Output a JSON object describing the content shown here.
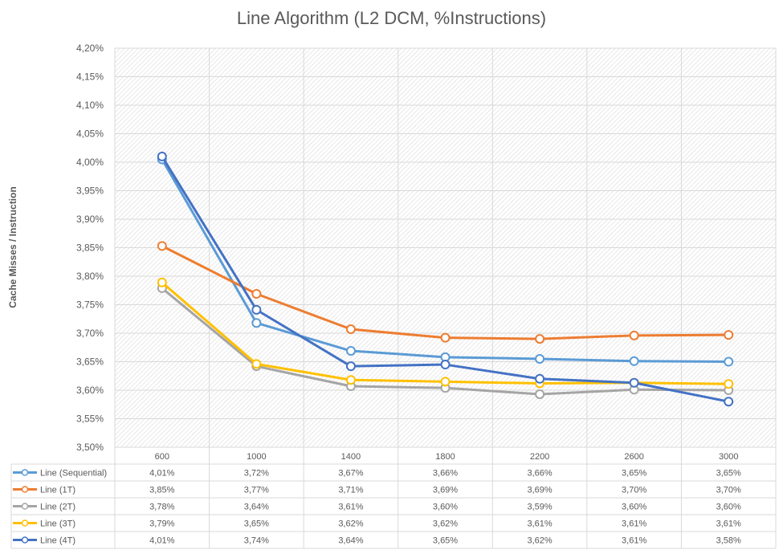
{
  "chart_data": {
    "type": "line",
    "title": "Line Algorithm (L2 DCM, %Instructions)",
    "ylabel": "Cache Misses / Instruction",
    "xlabel": "",
    "categories": [
      "600",
      "1000",
      "1400",
      "1800",
      "2200",
      "2600",
      "3000"
    ],
    "ylim": [
      3.5,
      4.2
    ],
    "ytick_step": 0.05,
    "ytick_labels": [
      "4,20%",
      "4,15%",
      "4,10%",
      "4,05%",
      "4,00%",
      "3,95%",
      "3,90%",
      "3,85%",
      "3,80%",
      "3,75%",
      "3,70%",
      "3,65%",
      "3,60%",
      "3,55%",
      "3,50%"
    ],
    "grid": true,
    "legend": "data-table-below",
    "series": [
      {
        "name": "Line (Sequential)",
        "color": "#5B9BD5",
        "values": [
          4.005,
          3.718,
          3.669,
          3.658,
          3.655,
          3.651,
          3.65
        ],
        "labels": [
          "4,01%",
          "3,72%",
          "3,67%",
          "3,66%",
          "3,66%",
          "3,65%",
          "3,65%"
        ]
      },
      {
        "name": "Line (1T)",
        "color": "#ED7D31",
        "values": [
          3.853,
          3.769,
          3.707,
          3.692,
          3.69,
          3.696,
          3.697
        ],
        "labels": [
          "3,85%",
          "3,77%",
          "3,71%",
          "3,69%",
          "3,69%",
          "3,70%",
          "3,70%"
        ]
      },
      {
        "name": "Line (2T)",
        "color": "#A5A5A5",
        "values": [
          3.779,
          3.642,
          3.607,
          3.604,
          3.593,
          3.601,
          3.6
        ],
        "labels": [
          "3,78%",
          "3,64%",
          "3,61%",
          "3,60%",
          "3,59%",
          "3,60%",
          "3,60%"
        ]
      },
      {
        "name": "Line (3T)",
        "color": "#FFC000",
        "values": [
          3.789,
          3.646,
          3.618,
          3.615,
          3.612,
          3.613,
          3.611
        ],
        "labels": [
          "3,79%",
          "3,65%",
          "3,62%",
          "3,62%",
          "3,61%",
          "3,61%",
          "3,61%"
        ]
      },
      {
        "name": "Line (4T)",
        "color": "#4472C4",
        "values": [
          4.01,
          3.741,
          3.642,
          3.645,
          3.62,
          3.613,
          3.58
        ],
        "labels": [
          "4,01%",
          "3,74%",
          "3,64%",
          "3,65%",
          "3,62%",
          "3,61%",
          "3,58%"
        ]
      }
    ]
  }
}
